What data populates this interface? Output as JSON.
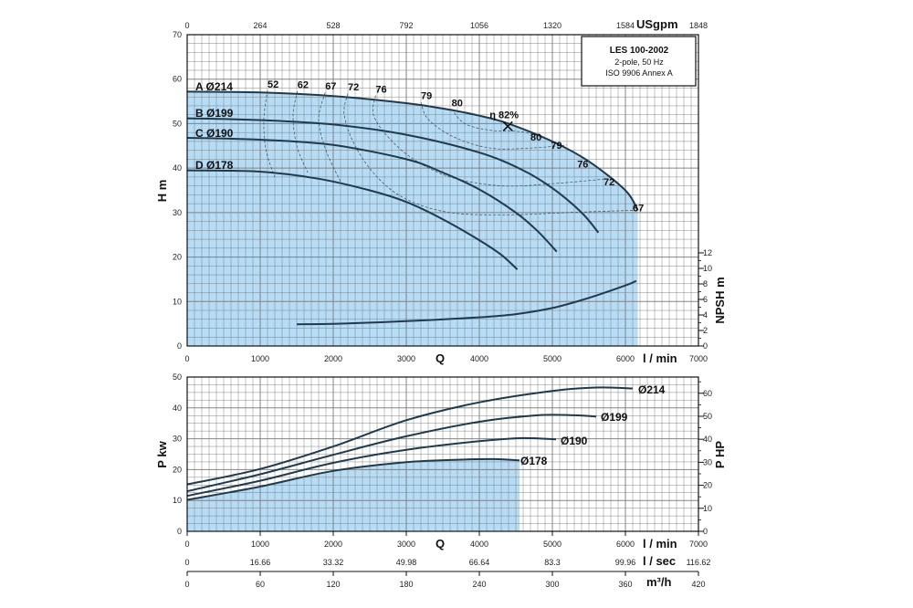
{
  "info_box": {
    "model": "LES 100-2002",
    "line1": "2-pole, 50 Hz",
    "line2": "ISO 9906 Annex A"
  },
  "colors": {
    "fill": "#b7dcf5",
    "grid": "#7a7a7a",
    "curve": "#1f3a4d",
    "frame": "#111111"
  },
  "chart_data": [
    {
      "type": "line",
      "name": "head-curves",
      "x_axis": {
        "label": "Q",
        "unit_label": "l / min",
        "range": [
          0,
          7000
        ],
        "ticks": [
          0,
          1000,
          2000,
          3000,
          4000,
          5000,
          6000,
          7000
        ]
      },
      "x_top_axis": {
        "label": "USgpm",
        "ticks": [
          "0",
          "264",
          "528",
          "792",
          "1056",
          "1320",
          "1584",
          "1848"
        ]
      },
      "y_axis": {
        "label": "H m",
        "range": [
          0,
          70
        ],
        "ticks": [
          0,
          10,
          20,
          30,
          40,
          50,
          60,
          70
        ]
      },
      "y2_axis": {
        "label": "NPSH m",
        "range": [
          0,
          12
        ],
        "ticks": [
          0,
          2,
          4,
          6,
          8,
          10,
          12
        ]
      },
      "series": [
        {
          "name": "A Ø214",
          "x": [
            0,
            1000,
            2000,
            3000,
            3500,
            4000,
            4400,
            5000,
            5500,
            6000,
            6170
          ],
          "y": [
            57.2,
            57.0,
            56.2,
            54.6,
            53.4,
            51.8,
            50.0,
            46.0,
            41.5,
            35.0,
            30.5
          ]
        },
        {
          "name": "B Ø199",
          "x": [
            0,
            1000,
            2000,
            3000,
            4000,
            4600,
            5000,
            5400,
            5630
          ],
          "y": [
            51.2,
            50.8,
            49.8,
            47.5,
            43.5,
            39.5,
            35.5,
            30.0,
            25.5
          ]
        },
        {
          "name": "C Ø190",
          "x": [
            0,
            1000,
            2000,
            3000,
            3500,
            4000,
            4500,
            4800,
            5060
          ],
          "y": [
            46.8,
            46.4,
            45.2,
            42.0,
            39.0,
            35.2,
            30.0,
            25.8,
            21.2
          ]
        },
        {
          "name": "D Ø178",
          "x": [
            0,
            1000,
            1800,
            2500,
            3000,
            3500,
            4000,
            4300,
            4520
          ],
          "y": [
            39.5,
            39.2,
            37.6,
            35.0,
            32.4,
            28.5,
            23.8,
            20.5,
            17.2
          ]
        }
      ],
      "npsh": {
        "x": [
          1500,
          2000,
          3000,
          4000,
          4500,
          5000,
          5500,
          6000,
          6150
        ],
        "y": [
          2.8,
          2.85,
          3.2,
          3.7,
          4.1,
          4.9,
          6.2,
          7.8,
          8.4
        ]
      },
      "efficiency_labels": [
        {
          "text": "52",
          "x": 1100,
          "y": 58.9
        },
        {
          "text": "62",
          "x": 1510,
          "y": 58.8
        },
        {
          "text": "67",
          "x": 1890,
          "y": 58.5
        },
        {
          "text": "72",
          "x": 2200,
          "y": 58.3
        },
        {
          "text": "76",
          "x": 2580,
          "y": 57.8
        },
        {
          "text": "79",
          "x": 3200,
          "y": 56.3
        },
        {
          "text": "80",
          "x": 3620,
          "y": 54.7
        },
        {
          "text": "η 82%",
          "x": 4140,
          "y": 52.0
        },
        {
          "text": "80",
          "x": 4700,
          "y": 47.0
        },
        {
          "text": "79",
          "x": 4980,
          "y": 45.2
        },
        {
          "text": "76",
          "x": 5340,
          "y": 41.0
        },
        {
          "text": "72",
          "x": 5700,
          "y": 37.0
        },
        {
          "text": "67",
          "x": 6100,
          "y": 31.1
        }
      ],
      "bep": {
        "x": 4390,
        "y": 49.4
      }
    },
    {
      "type": "line",
      "name": "power-curves",
      "x_axis": {
        "label": "Q",
        "unit_label": "l / min",
        "range": [
          0,
          7000
        ],
        "ticks": [
          0,
          1000,
          2000,
          3000,
          4000,
          5000,
          6000,
          7000
        ]
      },
      "x2_axis": {
        "unit_label": "l / sec",
        "ticks": [
          "0",
          "16.66",
          "33.32",
          "49.98",
          "66.64",
          "83.3",
          "99.96",
          "116.62"
        ]
      },
      "x3_axis": {
        "unit_label": "m³/h",
        "ticks": [
          "0",
          "60",
          "120",
          "180",
          "240",
          "300",
          "360",
          "420"
        ]
      },
      "y_axis": {
        "label": "P kw",
        "range": [
          0,
          50
        ],
        "ticks": [
          0,
          10,
          20,
          30,
          40,
          50
        ]
      },
      "y2_axis": {
        "label": "P HP",
        "range": [
          0,
          67
        ],
        "ticks": [
          0,
          10,
          20,
          30,
          40,
          50,
          60
        ]
      },
      "series": [
        {
          "name": "Ø214",
          "x": [
            0,
            1000,
            2000,
            3000,
            4000,
            5000,
            5600,
            6100
          ],
          "y": [
            15.2,
            20.2,
            27.5,
            36.0,
            41.8,
            45.5,
            46.6,
            46.3
          ]
        },
        {
          "name": "Ø199",
          "x": [
            0,
            1000,
            2000,
            3000,
            4000,
            4800,
            5300,
            5600
          ],
          "y": [
            13.0,
            18.5,
            24.8,
            30.8,
            35.5,
            37.6,
            37.6,
            37.2
          ]
        },
        {
          "name": "Ø190",
          "x": [
            0,
            1000,
            2000,
            3000,
            4000,
            4600,
            5050
          ],
          "y": [
            11.5,
            16.4,
            22.2,
            26.4,
            29.2,
            30.2,
            29.8
          ]
        },
        {
          "name": "Ø178",
          "x": [
            0,
            1000,
            2000,
            3000,
            3700,
            4200,
            4550
          ],
          "y": [
            10.2,
            14.5,
            19.6,
            22.4,
            23.2,
            23.4,
            23.0
          ]
        }
      ]
    }
  ]
}
